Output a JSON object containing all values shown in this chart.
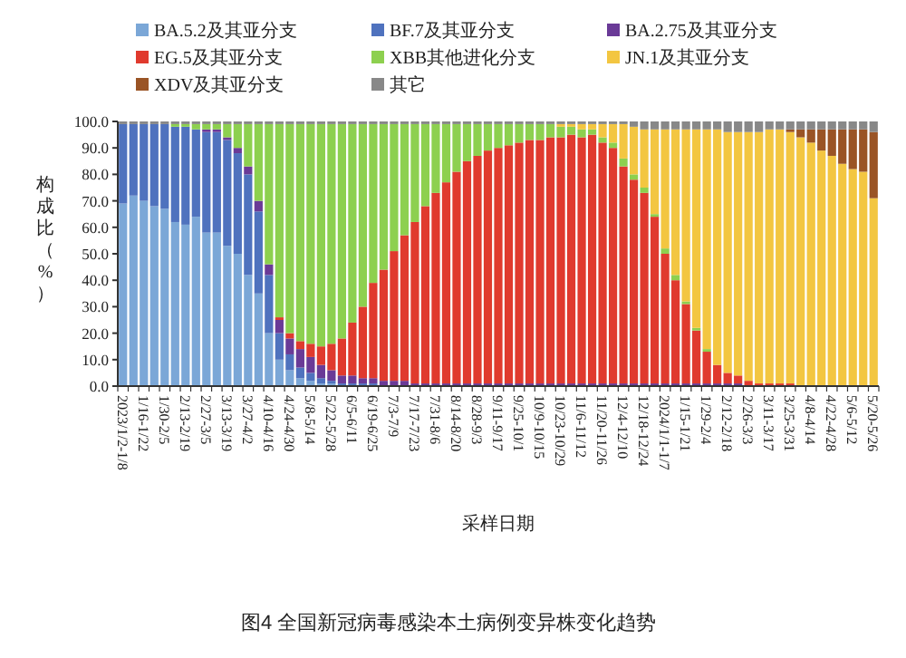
{
  "chart_data": {
    "type": "bar",
    "stacked": true,
    "legend": "top",
    "xlabel": "采样日期",
    "ylabel": "构成比（%）",
    "annotations": [
      "图4 全国新冠病毒感染本土病例变异株变化趋势"
    ],
    "ylim": [
      0,
      100
    ],
    "yticks": [
      {
        "value": 0,
        "label": "0.0"
      },
      {
        "value": 10,
        "label": "10.0"
      },
      {
        "value": 20,
        "label": "20.0"
      },
      {
        "value": 30,
        "label": "30.0"
      },
      {
        "value": 40,
        "label": "40.0"
      },
      {
        "value": 50,
        "label": "50.0"
      },
      {
        "value": 60,
        "label": "60.0"
      },
      {
        "value": 70,
        "label": "70.0"
      },
      {
        "value": 80,
        "label": "80.0"
      },
      {
        "value": 90,
        "label": "90.0"
      },
      {
        "value": 100,
        "label": "100.0"
      }
    ],
    "categories": [
      "2023/1/2-1/8",
      null,
      "1/16-1/22",
      null,
      "1/30-2/5",
      null,
      "2/13-2/19",
      null,
      "2/27-3/5",
      null,
      "3/13-3/19",
      null,
      "3/27-4/2",
      null,
      "4/10-4/16",
      null,
      "4/24-4/30",
      null,
      "5/8-5/14",
      null,
      "5/22-5/28",
      null,
      "6/5-6/11",
      null,
      "6/19-6/25",
      null,
      "7/3-7/9",
      null,
      "7/17-7/23",
      null,
      "7/31-8/6",
      null,
      "8/14-8/20",
      null,
      "8/28-9/3",
      null,
      "9/11-9/17",
      null,
      "9/25-10/1",
      null,
      "10/9-10/15",
      null,
      "10/23-10/29",
      null,
      "11/6-11/12",
      null,
      "11/20-11/26",
      null,
      "12/4-12/10",
      null,
      "12/18-12/24",
      null,
      "2024/1/1-1/7",
      null,
      "1/15-1/21",
      null,
      "1/29-2/4",
      null,
      "2/12-2/18",
      null,
      "2/26-3/3",
      null,
      "3/11-3/17",
      null,
      "3/25-3/31",
      null,
      "4/8-4/14",
      null,
      "4/22-4/28",
      null,
      "5/6-5/12",
      null,
      "5/20-5/26"
    ],
    "series": [
      {
        "name": "BA.5.2及其亚分支",
        "color": "#7ba7d7",
        "values": [
          69,
          72,
          70,
          68,
          67,
          62,
          61,
          64,
          58,
          58,
          53,
          50,
          42,
          35,
          20,
          10,
          6,
          3,
          2,
          1,
          1,
          0,
          0,
          0,
          0,
          0,
          0,
          0,
          0,
          0,
          0,
          0,
          0,
          0,
          0,
          0,
          0,
          0,
          0,
          0,
          0,
          0,
          0,
          0,
          0,
          0,
          0,
          0,
          0,
          0,
          0,
          0,
          0,
          0,
          0,
          0,
          0,
          0,
          0,
          0,
          0,
          0,
          0,
          0,
          0,
          0,
          0,
          0,
          0,
          0,
          0,
          0,
          0
        ]
      },
      {
        "name": "BF.7及其亚分支",
        "color": "#4f72be",
        "values": [
          30,
          27,
          29,
          31,
          32,
          36,
          37,
          33,
          38,
          38,
          40,
          38,
          38,
          31,
          22,
          10,
          6,
          4,
          3,
          2,
          1,
          1,
          1,
          1,
          1,
          0,
          0,
          0,
          0,
          0,
          0,
          0,
          0,
          0,
          0,
          0,
          0,
          0,
          0,
          0,
          0,
          0,
          0,
          0,
          0,
          0,
          0,
          0,
          0,
          0,
          0,
          0,
          0,
          0,
          0,
          0,
          0,
          0,
          0,
          0,
          0,
          0,
          0,
          0,
          0,
          0,
          0,
          0,
          0,
          0,
          0,
          0,
          0
        ]
      },
      {
        "name": "BA.2.75及其亚分支",
        "color": "#6a3a97",
        "values": [
          0,
          0,
          0,
          0,
          0,
          0,
          0,
          0,
          1,
          1,
          1,
          2,
          3,
          4,
          4,
          5,
          6,
          7,
          6,
          5,
          4,
          3,
          3,
          2,
          2,
          2,
          2,
          2,
          1,
          1,
          1,
          1,
          1,
          1,
          1,
          1,
          1,
          1,
          1,
          1,
          1,
          1,
          1,
          1,
          1,
          1,
          1,
          1,
          1,
          1,
          1,
          1,
          1,
          1,
          1,
          1,
          1,
          1,
          1,
          1,
          0,
          0,
          0,
          0,
          0,
          0,
          0,
          0,
          0,
          0,
          0,
          0,
          0
        ]
      },
      {
        "name": "EG.5及其亚分支",
        "color": "#e03a2e",
        "values": [
          0,
          0,
          0,
          0,
          0,
          0,
          0,
          0,
          0,
          0,
          0,
          0,
          0,
          0,
          0,
          1,
          2,
          3,
          5,
          7,
          10,
          14,
          20,
          27,
          36,
          42,
          49,
          55,
          61,
          67,
          72,
          76,
          80,
          84,
          86,
          88,
          89,
          90,
          91,
          92,
          92,
          93,
          93,
          94,
          93,
          94,
          91,
          89,
          82,
          77,
          72,
          63,
          49,
          39,
          30,
          20,
          12,
          7,
          4,
          3,
          2,
          1,
          1,
          1,
          1,
          0,
          0,
          0,
          0,
          0,
          0,
          0,
          0
        ]
      },
      {
        "name": "XBB其他进化分支",
        "color": "#8dd04f",
        "values": [
          0,
          0,
          0,
          0,
          0,
          1,
          1,
          2,
          2,
          2,
          5,
          9,
          16,
          29,
          53,
          73,
          79,
          82,
          83,
          84,
          83,
          81,
          75,
          69,
          60,
          55,
          48,
          42,
          37,
          31,
          26,
          22,
          18,
          14,
          12,
          10,
          9,
          8,
          7,
          6,
          6,
          5,
          4,
          3,
          3,
          2,
          2,
          2,
          3,
          2,
          2,
          1,
          2,
          2,
          1,
          1,
          1,
          0,
          0,
          0,
          0,
          0,
          0,
          0,
          0,
          0,
          0,
          0,
          0,
          0,
          0,
          0,
          0
        ]
      },
      {
        "name": "JN.1及其亚分支",
        "color": "#f3c641",
        "values": [
          0,
          0,
          0,
          0,
          0,
          0,
          0,
          0,
          0,
          0,
          0,
          0,
          0,
          0,
          0,
          0,
          0,
          0,
          0,
          0,
          0,
          0,
          0,
          0,
          0,
          0,
          0,
          0,
          0,
          0,
          0,
          0,
          0,
          0,
          0,
          0,
          0,
          0,
          0,
          0,
          0,
          0,
          1,
          1,
          2,
          2,
          5,
          7,
          13,
          18,
          22,
          32,
          45,
          55,
          65,
          75,
          83,
          89,
          91,
          92,
          94,
          95,
          96,
          96,
          95,
          94,
          92,
          89,
          87,
          84,
          82,
          81,
          71
        ]
      },
      {
        "name": "XDV及其亚分支",
        "color": "#9a5425",
        "values": [
          0,
          0,
          0,
          0,
          0,
          0,
          0,
          0,
          0,
          0,
          0,
          0,
          0,
          0,
          0,
          0,
          0,
          0,
          0,
          0,
          0,
          0,
          0,
          0,
          0,
          0,
          0,
          0,
          0,
          0,
          0,
          0,
          0,
          0,
          0,
          0,
          0,
          0,
          0,
          0,
          0,
          0,
          0,
          0,
          0,
          0,
          0,
          0,
          0,
          0,
          0,
          0,
          0,
          0,
          0,
          0,
          0,
          0,
          0,
          0,
          0,
          0,
          0,
          0,
          1,
          3,
          5,
          8,
          10,
          13,
          15,
          16,
          25
        ]
      },
      {
        "name": "其它",
        "color": "#888888",
        "values": [
          1,
          1,
          1,
          1,
          1,
          1,
          1,
          1,
          1,
          1,
          1,
          1,
          1,
          1,
          1,
          1,
          1,
          1,
          1,
          1,
          1,
          1,
          1,
          1,
          1,
          1,
          1,
          1,
          1,
          1,
          1,
          1,
          1,
          1,
          1,
          1,
          1,
          1,
          1,
          1,
          1,
          1,
          1,
          1,
          1,
          1,
          1,
          1,
          1,
          2,
          3,
          3,
          3,
          3,
          3,
          3,
          3,
          3,
          4,
          4,
          4,
          4,
          3,
          3,
          3,
          3,
          3,
          3,
          3,
          3,
          3,
          3,
          4
        ]
      }
    ]
  }
}
